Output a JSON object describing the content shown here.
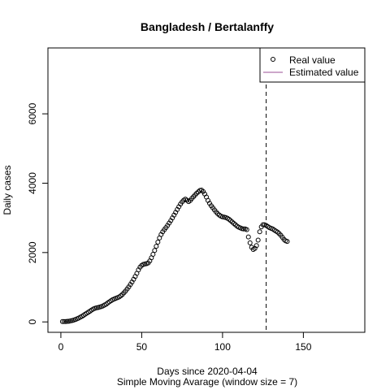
{
  "chart_data": {
    "type": "scatter",
    "title": "Bangladesh / Bertalanffy",
    "xlabel": "Days since 2020-04-04",
    "xlabel2": "Simple Moving Avarage (window size = 7)",
    "ylabel": "Daily cases",
    "xlim": [
      -8,
      188
    ],
    "ylim": [
      -300,
      7900
    ],
    "x_ticks": [
      0,
      50,
      100,
      150
    ],
    "y_ticks": [
      0,
      2000,
      4000,
      6000
    ],
    "vline_x": 127,
    "legend_position": "top-right",
    "legend": [
      {
        "label": "Real value",
        "marker": "open-circle",
        "color": "#000000"
      },
      {
        "label": "Estimated value",
        "marker": "line",
        "color": "#9b4f96"
      }
    ],
    "series": [
      {
        "name": "Real value",
        "points": [
          [
            1,
            10
          ],
          [
            2,
            10
          ],
          [
            3,
            10
          ],
          [
            4,
            15
          ],
          [
            5,
            20
          ],
          [
            6,
            30
          ],
          [
            7,
            40
          ],
          [
            8,
            55
          ],
          [
            9,
            70
          ],
          [
            10,
            90
          ],
          [
            11,
            110
          ],
          [
            12,
            135
          ],
          [
            13,
            160
          ],
          [
            14,
            190
          ],
          [
            15,
            220
          ],
          [
            16,
            250
          ],
          [
            17,
            280
          ],
          [
            18,
            310
          ],
          [
            19,
            340
          ],
          [
            20,
            370
          ],
          [
            21,
            390
          ],
          [
            22,
            405
          ],
          [
            23,
            415
          ],
          [
            24,
            430
          ],
          [
            25,
            440
          ],
          [
            26,
            460
          ],
          [
            27,
            485
          ],
          [
            28,
            510
          ],
          [
            29,
            545
          ],
          [
            30,
            580
          ],
          [
            31,
            610
          ],
          [
            32,
            640
          ],
          [
            33,
            660
          ],
          [
            34,
            680
          ],
          [
            35,
            700
          ],
          [
            36,
            720
          ],
          [
            37,
            750
          ],
          [
            38,
            790
          ],
          [
            39,
            840
          ],
          [
            40,
            890
          ],
          [
            41,
            950
          ],
          [
            42,
            1010
          ],
          [
            43,
            1080
          ],
          [
            44,
            1150
          ],
          [
            45,
            1230
          ],
          [
            46,
            1310
          ],
          [
            47,
            1400
          ],
          [
            48,
            1500
          ],
          [
            49,
            1580
          ],
          [
            50,
            1630
          ],
          [
            51,
            1660
          ],
          [
            52,
            1670
          ],
          [
            53,
            1680
          ],
          [
            54,
            1700
          ],
          [
            55,
            1760
          ],
          [
            56,
            1850
          ],
          [
            57,
            1950
          ],
          [
            58,
            2060
          ],
          [
            59,
            2180
          ],
          [
            60,
            2300
          ],
          [
            61,
            2420
          ],
          [
            62,
            2520
          ],
          [
            63,
            2600
          ],
          [
            64,
            2660
          ],
          [
            65,
            2720
          ],
          [
            66,
            2780
          ],
          [
            67,
            2850
          ],
          [
            68,
            2920
          ],
          [
            69,
            3000
          ],
          [
            70,
            3080
          ],
          [
            71,
            3160
          ],
          [
            72,
            3240
          ],
          [
            73,
            3320
          ],
          [
            74,
            3400
          ],
          [
            75,
            3460
          ],
          [
            76,
            3510
          ],
          [
            77,
            3540
          ],
          [
            78,
            3510
          ],
          [
            79,
            3470
          ],
          [
            80,
            3500
          ],
          [
            81,
            3560
          ],
          [
            82,
            3610
          ],
          [
            83,
            3660
          ],
          [
            84,
            3710
          ],
          [
            85,
            3750
          ],
          [
            86,
            3790
          ],
          [
            87,
            3800
          ],
          [
            88,
            3760
          ],
          [
            89,
            3690
          ],
          [
            90,
            3600
          ],
          [
            91,
            3500
          ],
          [
            92,
            3420
          ],
          [
            93,
            3350
          ],
          [
            94,
            3290
          ],
          [
            95,
            3230
          ],
          [
            96,
            3170
          ],
          [
            97,
            3120
          ],
          [
            98,
            3080
          ],
          [
            99,
            3050
          ],
          [
            100,
            3030
          ],
          [
            101,
            3020
          ],
          [
            102,
            3010
          ],
          [
            103,
            2990
          ],
          [
            104,
            2960
          ],
          [
            105,
            2920
          ],
          [
            106,
            2880
          ],
          [
            107,
            2840
          ],
          [
            108,
            2800
          ],
          [
            109,
            2760
          ],
          [
            110,
            2730
          ],
          [
            111,
            2710
          ],
          [
            112,
            2690
          ],
          [
            113,
            2680
          ],
          [
            114,
            2680
          ],
          [
            115,
            2660
          ],
          [
            116,
            2450
          ],
          [
            117,
            2280
          ],
          [
            118,
            2150
          ],
          [
            119,
            2090
          ],
          [
            120,
            2120
          ],
          [
            121,
            2200
          ],
          [
            122,
            2360
          ],
          [
            123,
            2600
          ],
          [
            124,
            2740
          ],
          [
            125,
            2800
          ],
          [
            126,
            2800
          ],
          [
            127,
            2780
          ],
          [
            128,
            2750
          ],
          [
            129,
            2720
          ],
          [
            130,
            2700
          ],
          [
            131,
            2680
          ],
          [
            132,
            2650
          ],
          [
            133,
            2620
          ],
          [
            134,
            2590
          ],
          [
            135,
            2550
          ],
          [
            136,
            2500
          ],
          [
            137,
            2440
          ],
          [
            138,
            2380
          ],
          [
            139,
            2340
          ],
          [
            140,
            2320
          ]
        ]
      }
    ]
  }
}
